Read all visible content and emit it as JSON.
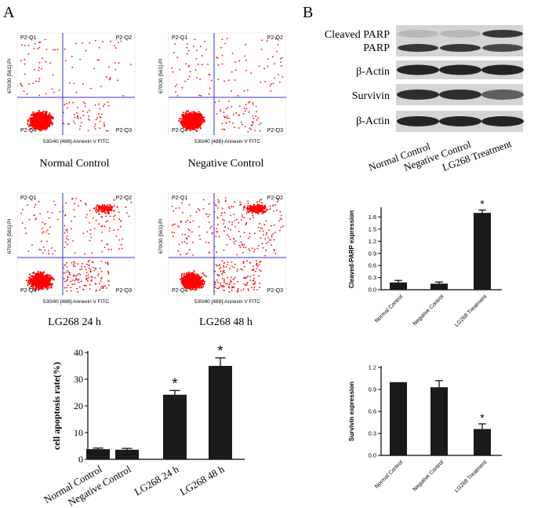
{
  "panels": {
    "A": "A",
    "B": "B"
  },
  "flow": {
    "quadrants": [
      "P2-Q1",
      "P2-Q2",
      "P2-Q3",
      "P2-Q4"
    ],
    "xlabel": "530/40 [488]-Annexin V FITC",
    "ylabel": "670/30 [561]-PI",
    "plots": [
      {
        "title": "Normal Control",
        "dist": [
          0.9,
          0.03,
          0.04,
          0.03
        ]
      },
      {
        "title": "Negative Control",
        "dist": [
          0.88,
          0.04,
          0.05,
          0.03
        ]
      },
      {
        "title": "LG268 24 h",
        "dist": [
          0.72,
          0.17,
          0.08,
          0.03
        ]
      },
      {
        "title": "LG268 48 h",
        "dist": [
          0.6,
          0.26,
          0.1,
          0.04
        ]
      }
    ]
  },
  "western": {
    "labels": [
      "Cleaved PARP",
      "PARP",
      "β-Actin",
      "Survivin",
      "β-Actin"
    ],
    "lanes": [
      "Normal Control",
      "Negative Control",
      "LG268 Treatment"
    ]
  },
  "chart_data": [
    {
      "type": "bar",
      "categories": [
        "Normal Control",
        "Negative Control",
        "LG268 24 h",
        "LG268 48 h"
      ],
      "values": [
        3.8,
        3.6,
        24.2,
        35.0
      ],
      "errors": [
        0.4,
        0.5,
        1.6,
        3.0
      ],
      "significant": [
        false,
        false,
        true,
        true
      ],
      "ylabel": "cell apoptosis rate(%)",
      "ylim": [
        0,
        40
      ],
      "yticks": [
        0,
        10,
        20,
        30,
        40
      ]
    },
    {
      "type": "bar",
      "categories": [
        "Normal Control",
        "Negative Control",
        "LG268 Treatment"
      ],
      "values": [
        0.18,
        0.15,
        1.9
      ],
      "errors": [
        0.05,
        0.04,
        0.07
      ],
      "significant": [
        false,
        false,
        true
      ],
      "ylabel": "Cleaved-PARP expression",
      "ylim": [
        0,
        2.0
      ],
      "yticks": [
        "0.0",
        "0.3",
        "0.6",
        "0.9",
        "1.2",
        "1.5",
        "1.8"
      ]
    },
    {
      "type": "bar",
      "categories": [
        "Normal Control",
        "Negative Control",
        "LG268 Treatment"
      ],
      "values": [
        1.0,
        0.93,
        0.36
      ],
      "errors": [
        0.0,
        0.09,
        0.07
      ],
      "significant": [
        false,
        false,
        true
      ],
      "ylabel": "Survivin expression",
      "ylim": [
        0,
        1.2
      ],
      "yticks": [
        "0.0",
        "0.3",
        "0.6",
        "0.9",
        "1.2"
      ]
    }
  ],
  "sig_symbol": "*"
}
